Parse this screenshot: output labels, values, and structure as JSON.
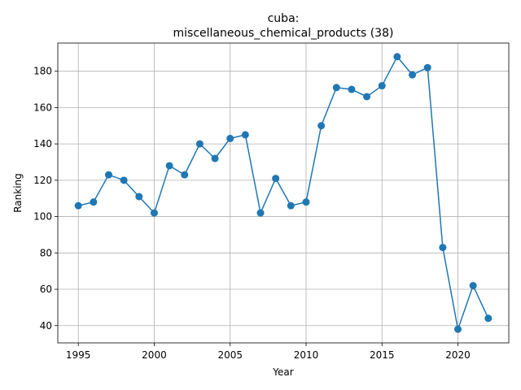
{
  "chart_data": {
    "type": "line",
    "title_line1": "cuba:",
    "title_line2": "miscellaneous_chemical_products (38)",
    "xlabel": "Year",
    "ylabel": "Ranking",
    "xlim": [
      1993.65,
      1995.0
    ],
    "ylim": [
      30.5,
      195.5
    ],
    "x_range": [
      1993.65,
      2023.35
    ],
    "grid": true,
    "x_ticks": [
      1995,
      2000,
      2005,
      2010,
      2015,
      2020
    ],
    "y_ticks": [
      40,
      60,
      80,
      100,
      120,
      140,
      160,
      180
    ],
    "colors": {
      "series": "#1f77b4",
      "grid": "#b0b0b0"
    },
    "x": [
      1995,
      1996,
      1997,
      1998,
      1999,
      2000,
      2001,
      2002,
      2003,
      2004,
      2005,
      2006,
      2007,
      2008,
      2009,
      2010,
      2011,
      2012,
      2013,
      2014,
      2015,
      2016,
      2017,
      2018,
      2019,
      2020,
      2021,
      2022
    ],
    "values": [
      106,
      108,
      123,
      120,
      111,
      102,
      128,
      123,
      140,
      132,
      143,
      145,
      102,
      121,
      106,
      108,
      150,
      171,
      170,
      166,
      172,
      188,
      178,
      182,
      83,
      38,
      62,
      44
    ]
  }
}
